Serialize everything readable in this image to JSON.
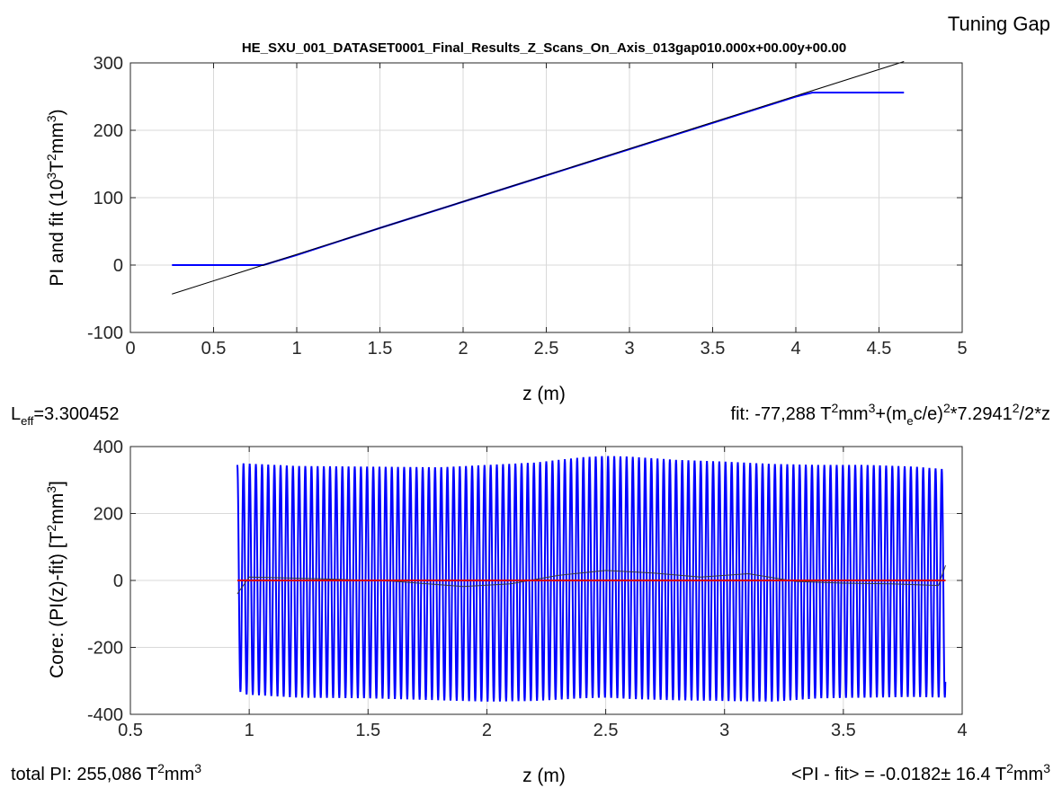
{
  "figure": {
    "corner_title": "Tuning Gap",
    "l_eff": {
      "base": "L",
      "sub": "eff",
      "value": "=3.300452"
    },
    "fit_label": {
      "p1": "fit: -77,288 T",
      "sup1": "2",
      "p2": "mm",
      "sup2": "3",
      "p3": "+(m",
      "sub1": "e",
      "p4": "c/e)",
      "sup3": "2",
      "p5": "*7.2941",
      "sup4": "2",
      "p6": "/2*z"
    },
    "total_pi": {
      "p1": "total PI: 255,086 T",
      "sup1": "2",
      "p2": "mm",
      "sup2": "3"
    },
    "residual_mean": {
      "p1": "<PI - fit> = -0.0182± 16.4 T",
      "sup1": "2",
      "p2": "mm",
      "sup2": "3"
    }
  },
  "colors": {
    "pi_line": "#0000ff",
    "fit_line": "#000000",
    "residual_line": "#0000ff",
    "smoothed_line": "#3a3a3a",
    "zero_line": "#d40000",
    "grid": "#d9d9d9",
    "axis": "#262626"
  },
  "chart_data": [
    {
      "type": "line",
      "title": "HE_SXU_001_DATASET0001_Final_Results_Z_Scans_On_Axis_013gap010.000x+00.00y+00.00",
      "xlabel": "z (m)",
      "ylabel": {
        "p1": "PI and fit (10",
        "sup1": "3",
        "p2": "T",
        "sup2": "2",
        "p3": "mm",
        "sup3": "3",
        "p4": ")"
      },
      "xlim": [
        0,
        5
      ],
      "ylim": [
        -100,
        300
      ],
      "xticks": [
        0,
        0.5,
        1,
        1.5,
        2,
        2.5,
        3,
        3.5,
        4,
        4.5,
        5
      ],
      "yticks": [
        -100,
        0,
        100,
        200,
        300
      ],
      "grid": true,
      "series": [
        {
          "role": "pi",
          "x": [
            0.25,
            0.8,
            1.0,
            1.5,
            2.0,
            2.5,
            3.0,
            3.5,
            4.0,
            4.1,
            4.65
          ],
          "y": [
            0,
            0,
            15,
            55,
            94,
            133,
            172,
            211,
            250,
            256,
            256
          ]
        },
        {
          "role": "fit",
          "x": [
            0.25,
            4.65
          ],
          "y": [
            -43,
            302
          ]
        }
      ]
    },
    {
      "type": "line",
      "title": "",
      "xlabel": "z (m)",
      "ylabel": {
        "p1": "Core: (PI(z)-fit) [T",
        "sup1": "2",
        "p2": "mm",
        "sup2": "3",
        "p3": "]"
      },
      "xlim": [
        0.5,
        4
      ],
      "ylim": [
        -400,
        400
      ],
      "xticks": [
        0.5,
        1,
        1.5,
        2,
        2.5,
        3,
        3.5,
        4
      ],
      "yticks": [
        -400,
        -200,
        0,
        200,
        400
      ],
      "grid": true,
      "oscillation": {
        "x_start": 0.95,
        "x_end": 3.93,
        "period": 0.026,
        "envelope": {
          "x": [
            0.95,
            0.97,
            1.2,
            1.5,
            1.8,
            2.0,
            2.2,
            2.4,
            2.5,
            2.6,
            2.8,
            3.0,
            3.2,
            3.4,
            3.6,
            3.8,
            3.93
          ],
          "upper": [
            345,
            350,
            342,
            340,
            338,
            345,
            352,
            368,
            372,
            370,
            360,
            355,
            348,
            345,
            345,
            340,
            332
          ],
          "lower": [
            -320,
            -340,
            -350,
            -352,
            -358,
            -362,
            -360,
            -352,
            -350,
            -354,
            -358,
            -360,
            -362,
            -352,
            -350,
            -348,
            -350
          ]
        }
      },
      "smoothed": {
        "x": [
          0.95,
          1.0,
          1.3,
          1.6,
          1.9,
          2.1,
          2.3,
          2.5,
          2.7,
          2.9,
          3.1,
          3.3,
          3.5,
          3.7,
          3.9,
          3.93
        ],
        "y": [
          -40,
          10,
          5,
          -2,
          -18,
          -10,
          15,
          30,
          22,
          10,
          20,
          -3,
          -8,
          -10,
          -15,
          45
        ]
      },
      "zero_line": {
        "x": [
          0.95,
          3.93
        ],
        "y": [
          0,
          0
        ]
      }
    }
  ]
}
